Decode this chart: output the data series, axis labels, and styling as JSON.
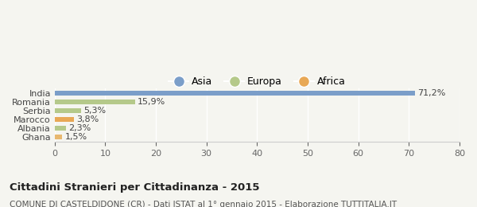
{
  "categories": [
    "Ghana",
    "Albania",
    "Marocco",
    "Serbia",
    "Romania",
    "India"
  ],
  "values": [
    1.5,
    2.3,
    3.8,
    5.3,
    15.9,
    71.2
  ],
  "labels": [
    "1,5%",
    "2,3%",
    "3,8%",
    "5,3%",
    "15,9%",
    "71,2%"
  ],
  "colors": [
    "#e8b870",
    "#b5c98a",
    "#e8a855",
    "#b5c98a",
    "#b5c98a",
    "#7b9ec9"
  ],
  "legend_items": [
    {
      "label": "Asia",
      "color": "#7b9ec9"
    },
    {
      "label": "Europa",
      "color": "#b5c98a"
    },
    {
      "label": "Africa",
      "color": "#e8a855"
    }
  ],
  "xlim": [
    0,
    80
  ],
  "xticks": [
    0,
    10,
    20,
    30,
    40,
    50,
    60,
    70,
    80
  ],
  "title": "Cittadini Stranieri per Cittadinanza - 2015",
  "subtitle": "COMUNE DI CASTELDIDONE (CR) - Dati ISTAT al 1° gennaio 2015 - Elaborazione TUTTITALIA.IT",
  "background_color": "#f5f5f0",
  "bar_height": 0.55
}
